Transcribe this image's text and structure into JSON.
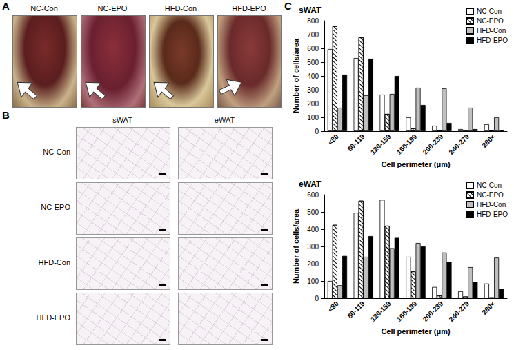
{
  "panels": {
    "A": {
      "label": "A",
      "photo_labels": [
        "NC-Con",
        "NC-EPO",
        "HFD-Con",
        "HFD-EPO"
      ]
    },
    "B": {
      "label": "B",
      "columns": [
        "sWAT",
        "eWAT"
      ],
      "rows": [
        "NC-Con",
        "NC-EPO",
        "HFD-Con",
        "HFD-EPO"
      ]
    },
    "C": {
      "label": "C"
    }
  },
  "chart_data": [
    {
      "type": "bar",
      "title": "sWAT",
      "x_label": "Cell perimeter (μm)",
      "y_label": "Number of cells/area",
      "categories": [
        "<80",
        "80-119",
        "120-159",
        "160-199",
        "200-239",
        "240-279",
        "280<"
      ],
      "series": [
        {
          "name": "NC-Con",
          "color": "#ffffff",
          "values": [
            595,
            530,
            265,
            100,
            40,
            15,
            50
          ]
        },
        {
          "name": "NC-EPO",
          "color": "#ffffff",
          "marker": "hatched",
          "values": [
            760,
            680,
            125,
            20,
            5,
            0,
            5
          ]
        },
        {
          "name": "HFD-Con",
          "color": "#bfbfbf",
          "values": [
            170,
            260,
            270,
            315,
            310,
            170,
            100
          ]
        },
        {
          "name": "HFD-EPO",
          "color": "#000000",
          "values": [
            410,
            525,
            400,
            190,
            60,
            15,
            5
          ]
        }
      ],
      "ylim": [
        0,
        800
      ],
      "yticks": [
        0,
        100,
        200,
        300,
        400,
        500,
        600,
        700,
        800
      ],
      "grid": false,
      "legend": "upper right"
    },
    {
      "type": "bar",
      "title": "eWAT",
      "x_label": "Cell perimeter (μm)",
      "y_label": "Number of cells/area",
      "categories": [
        "<80",
        "80-119",
        "120-159",
        "160-199",
        "200-239",
        "240-279",
        "280<"
      ],
      "series": [
        {
          "name": "NC-Con",
          "color": "#ffffff",
          "values": [
            100,
            495,
            570,
            240,
            65,
            40,
            85
          ]
        },
        {
          "name": "NC-EPO",
          "color": "#ffffff",
          "marker": "hatched",
          "values": [
            425,
            565,
            420,
            155,
            15,
            10,
            5
          ]
        },
        {
          "name": "HFD-Con",
          "color": "#bfbfbf",
          "values": [
            75,
            240,
            290,
            320,
            265,
            180,
            235
          ]
        },
        {
          "name": "HFD-EPO",
          "color": "#000000",
          "values": [
            245,
            360,
            350,
            300,
            210,
            95,
            55
          ]
        }
      ],
      "ylim": [
        0,
        600
      ],
      "yticks": [
        0,
        100,
        200,
        300,
        400,
        500,
        600
      ],
      "grid": false,
      "legend": "upper right"
    }
  ]
}
